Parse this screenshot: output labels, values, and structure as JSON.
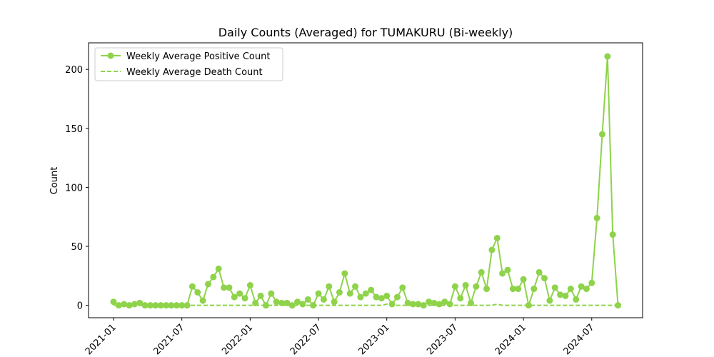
{
  "chart_data": {
    "type": "line",
    "title": "Daily Counts (Averaged) for TUMAKURU (Bi-weekly)",
    "ylabel": "Count",
    "categories": [
      "2021-01",
      null,
      null,
      null,
      null,
      null,
      null,
      null,
      null,
      null,
      null,
      null,
      null,
      "2021-07",
      null,
      null,
      null,
      null,
      null,
      null,
      null,
      null,
      null,
      null,
      null,
      null,
      "2022-01",
      null,
      null,
      null,
      null,
      null,
      null,
      null,
      null,
      null,
      null,
      null,
      null,
      "2022-07",
      null,
      null,
      null,
      null,
      null,
      null,
      null,
      null,
      null,
      null,
      null,
      null,
      "2023-01",
      null,
      null,
      null,
      null,
      null,
      null,
      null,
      null,
      null,
      null,
      null,
      null,
      "2023-07",
      null,
      null,
      null,
      null,
      null,
      null,
      null,
      null,
      null,
      null,
      null,
      null,
      "2024-01",
      null,
      null,
      null,
      null,
      null,
      null,
      null,
      null,
      null,
      null,
      null,
      null,
      "2024-07",
      null,
      null,
      null,
      null,
      null
    ],
    "series": [
      {
        "name": "Weekly Average Positive Count",
        "color": "#8ed34a",
        "style": "solid",
        "marker": "o",
        "values": [
          3,
          0,
          1,
          0,
          1,
          2,
          0,
          0,
          0,
          0,
          0,
          0,
          0,
          0,
          0,
          16,
          11,
          4,
          18,
          24,
          31,
          15,
          15,
          7,
          10,
          6,
          17,
          2,
          8,
          0,
          10,
          3,
          2,
          2,
          0,
          3,
          1,
          5,
          0,
          10,
          5,
          16,
          3,
          11,
          27,
          10,
          16,
          7,
          10,
          13,
          7,
          6,
          8,
          1,
          7,
          15,
          2,
          1,
          1,
          0,
          3,
          2,
          1,
          3,
          1,
          16,
          6,
          17,
          2,
          16,
          28,
          14,
          47,
          57,
          27,
          30,
          14,
          14,
          22,
          0,
          14,
          28,
          23,
          4,
          15,
          9,
          8,
          14,
          5,
          16,
          14,
          19,
          74,
          145,
          211,
          60,
          0
        ]
      },
      {
        "name": "Weekly Average Death Count",
        "color": "#8ed34a",
        "style": "dashed",
        "values": [
          0,
          0,
          0,
          0,
          0,
          0,
          0,
          0,
          0,
          0,
          0,
          0,
          0,
          0,
          0,
          0,
          0,
          0,
          0,
          0,
          0,
          0,
          0,
          0,
          0,
          0,
          0,
          0,
          0,
          0,
          0,
          0,
          0,
          0,
          0,
          0,
          0,
          0,
          0,
          0,
          0,
          0,
          0,
          0,
          0,
          0,
          0,
          0,
          0,
          0,
          0,
          0,
          1,
          0,
          0,
          0,
          0,
          0,
          0,
          0,
          0,
          0,
          0,
          0,
          0,
          0,
          0,
          0,
          0,
          0,
          0,
          0,
          0,
          1,
          0,
          0,
          0,
          0,
          0,
          0,
          0,
          0,
          0,
          0,
          0,
          0,
          0,
          0,
          0,
          0,
          0,
          0,
          0,
          0,
          0,
          0,
          0
        ]
      }
    ],
    "ylim": [
      -10.5,
      222.5
    ],
    "yticks": [
      0,
      50,
      100,
      150,
      200
    ],
    "legend": "upper left",
    "grid": false
  }
}
